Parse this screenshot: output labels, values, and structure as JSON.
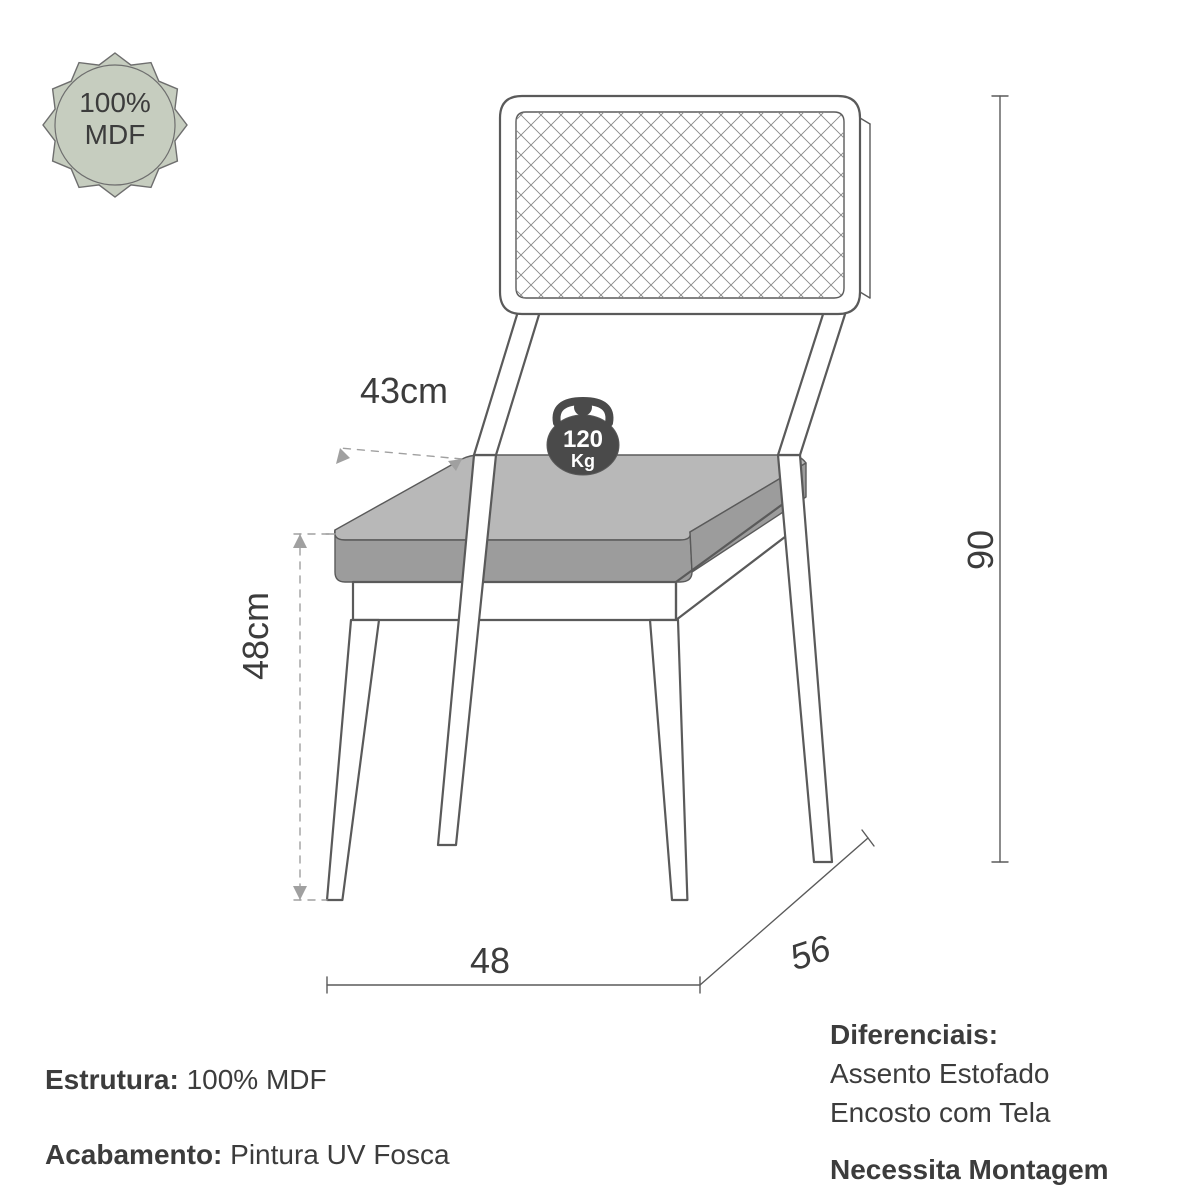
{
  "badge": {
    "line1": "100%",
    "line2": "MDF",
    "fill": "#c6cdbf",
    "stroke": "#6e6e6e",
    "text_color": "#3c3c3c"
  },
  "dimensions": {
    "seat_depth": {
      "value": "43cm"
    },
    "seat_height": {
      "value": "48cm"
    },
    "total_height": {
      "value": "90"
    },
    "width": {
      "value": "48"
    },
    "depth": {
      "value": "56"
    }
  },
  "weight_icon": {
    "value": "120",
    "unit": "Kg",
    "fill": "#4a4a4a",
    "text_color": "#ffffff"
  },
  "specs": {
    "estrutura_label": "Estrutura:",
    "estrutura_value": "100% MDF",
    "acabamento_label": "Acabamento:",
    "acabamento_value": "Pintura UV Fosca",
    "diferenciais_label": "Diferenciais:",
    "diferenciais_line1": "Assento Estofado",
    "diferenciais_line2": "Encosto com Tela",
    "montagem": "Necessita Montagem"
  },
  "colors": {
    "line": "#5a5a5a",
    "line_light": "#a0a0a0",
    "seat_fill": "#b8b8b8",
    "seat_fill_edge": "#9c9c9c",
    "mesh": "#888888",
    "bg": "#ffffff"
  },
  "style": {
    "stroke_main": 2.2,
    "stroke_thin": 1.4,
    "stroke_mesh": 0.9,
    "dash": "7 7",
    "dim_font": 36,
    "spec_font": 28
  }
}
